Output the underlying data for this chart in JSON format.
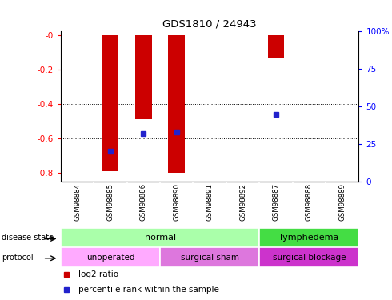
{
  "title": "GDS1810 / 24943",
  "samples": [
    "GSM98884",
    "GSM98885",
    "GSM98886",
    "GSM98890",
    "GSM98891",
    "GSM98892",
    "GSM98887",
    "GSM98888",
    "GSM98889"
  ],
  "log2_ratio": [
    0.0,
    -0.79,
    -0.49,
    -0.8,
    0.0,
    0.0,
    -0.13,
    0.0,
    0.0
  ],
  "percentile_rank": [
    null,
    20,
    32,
    33,
    null,
    null,
    45,
    null,
    null
  ],
  "ylim_left": [
    -0.85,
    0.02
  ],
  "ylim_right": [
    0,
    100
  ],
  "yticks_left": [
    0.0,
    -0.2,
    -0.4,
    -0.6,
    -0.8
  ],
  "yticks_left_labels": [
    "-0",
    "-0.2",
    "-0.4",
    "-0.6",
    "-0.8"
  ],
  "yticks_right": [
    100,
    75,
    50,
    25,
    0
  ],
  "yticks_right_labels": [
    "100%",
    "75",
    "50",
    "25",
    "0"
  ],
  "bar_color": "#cc0000",
  "dot_color": "#2222cc",
  "normal_color": "#aaffaa",
  "lymphedema_color": "#44dd44",
  "unoperated_color": "#ffaaff",
  "surgical_sham_color": "#dd77dd",
  "surgical_blockage_color": "#cc33cc",
  "legend_items": [
    {
      "label": "log2 ratio",
      "color": "#cc0000"
    },
    {
      "label": "percentile rank within the sample",
      "color": "#2222cc"
    }
  ],
  "background_color": "#ffffff",
  "tick_area_color": "#bbbbbb"
}
